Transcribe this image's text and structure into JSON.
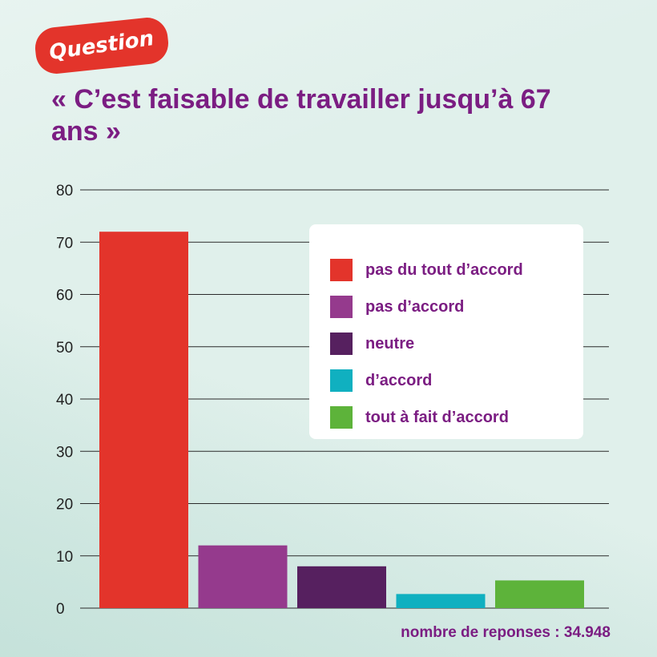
{
  "badge": {
    "label": "Question"
  },
  "title": "« C’est faisable de travailler jusqu’à 67 ans »",
  "footnote": "nombre de reponses : 34.948",
  "colors": {
    "red": "#e3342b",
    "magenta": "#953a8d",
    "dark_purple": "#56205f",
    "teal": "#10b0c0",
    "green": "#5db33a",
    "text_purple": "#7b1d82",
    "background": "#d8ece6"
  },
  "chart_data": {
    "type": "bar",
    "categories": [
      "pas du tout d’accord",
      "pas d’accord",
      "neutre",
      "d’accord",
      "tout à fait d’accord"
    ],
    "values": [
      72,
      12,
      8,
      2.7,
      5.3
    ],
    "bar_colors": [
      "#e3342b",
      "#953a8d",
      "#56205f",
      "#10b0c0",
      "#5db33a"
    ],
    "ylim": [
      0,
      80
    ],
    "yticks": [
      0,
      10,
      20,
      30,
      40,
      50,
      60,
      70,
      80
    ],
    "grid": true,
    "legend_position": "top-right"
  }
}
